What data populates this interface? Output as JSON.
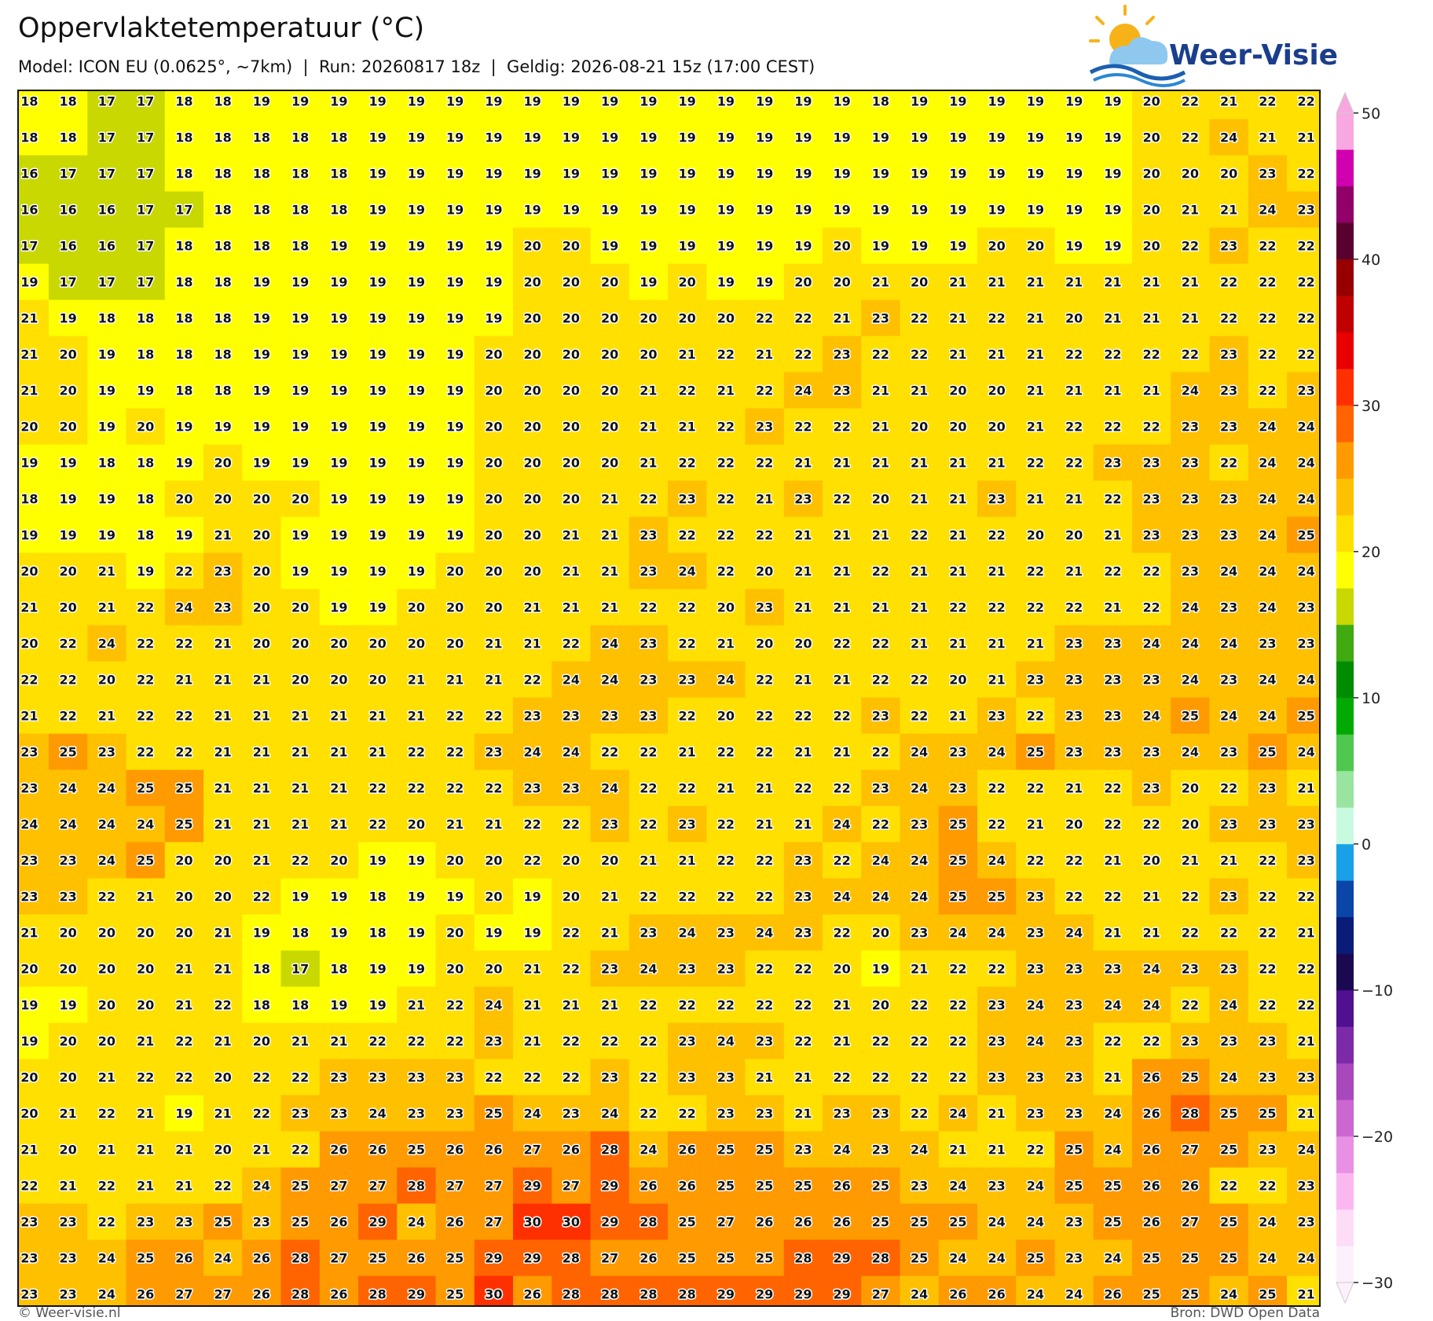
{
  "header": {
    "title": "Oppervlaktetemperatuur (°C)",
    "subtitle": "Model: ICON EU (0.0625°, ~7km)  |  Run: 20260817 18z  |  Geldig: 2026-08-21 15z (17:00 CEST)",
    "logo": "Weer-Visie"
  },
  "map": {
    "values": [
      [
        18,
        18,
        17,
        17,
        18,
        18,
        19,
        19,
        19,
        19,
        19,
        19,
        19,
        19,
        19,
        19,
        19,
        19,
        19,
        19,
        19,
        19,
        18,
        19,
        19,
        19,
        19,
        19,
        19,
        20,
        22,
        21,
        22,
        22
      ],
      [
        18,
        18,
        17,
        17,
        18,
        18,
        18,
        18,
        18,
        19,
        19,
        19,
        19,
        19,
        19,
        19,
        19,
        19,
        19,
        19,
        19,
        19,
        19,
        19,
        19,
        19,
        19,
        19,
        19,
        20,
        22,
        24,
        21,
        21
      ],
      [
        16,
        17,
        17,
        17,
        18,
        18,
        18,
        18,
        18,
        19,
        19,
        19,
        19,
        19,
        19,
        19,
        19,
        19,
        19,
        19,
        19,
        19,
        19,
        19,
        19,
        19,
        19,
        19,
        19,
        20,
        20,
        20,
        23,
        22
      ],
      [
        16,
        16,
        16,
        17,
        17,
        18,
        18,
        18,
        18,
        19,
        19,
        19,
        19,
        19,
        19,
        19,
        19,
        19,
        19,
        19,
        19,
        19,
        19,
        19,
        19,
        19,
        19,
        19,
        19,
        20,
        21,
        21,
        24,
        23
      ],
      [
        17,
        16,
        16,
        17,
        18,
        18,
        18,
        18,
        19,
        19,
        19,
        19,
        19,
        20,
        20,
        19,
        19,
        19,
        19,
        19,
        19,
        20,
        19,
        19,
        19,
        20,
        20,
        19,
        19,
        20,
        22,
        23,
        22,
        22
      ],
      [
        19,
        17,
        17,
        17,
        18,
        18,
        19,
        19,
        19,
        19,
        19,
        19,
        19,
        20,
        20,
        20,
        19,
        20,
        19,
        19,
        20,
        20,
        21,
        20,
        21,
        21,
        21,
        21,
        21,
        21,
        21,
        22,
        22,
        22
      ],
      [
        21,
        19,
        18,
        18,
        18,
        18,
        19,
        19,
        19,
        19,
        19,
        19,
        19,
        20,
        20,
        20,
        20,
        20,
        20,
        22,
        22,
        21,
        23,
        22,
        21,
        22,
        21,
        20,
        21,
        21,
        21,
        22,
        22,
        22
      ],
      [
        21,
        20,
        19,
        18,
        18,
        18,
        19,
        19,
        19,
        19,
        19,
        19,
        20,
        20,
        20,
        20,
        20,
        21,
        22,
        21,
        22,
        23,
        22,
        22,
        21,
        21,
        21,
        22,
        22,
        22,
        22,
        23,
        22,
        22
      ],
      [
        21,
        20,
        19,
        19,
        18,
        18,
        19,
        19,
        19,
        19,
        19,
        19,
        20,
        20,
        20,
        20,
        21,
        22,
        21,
        22,
        24,
        23,
        21,
        21,
        20,
        20,
        21,
        21,
        21,
        21,
        24,
        23,
        22,
        23
      ],
      [
        20,
        20,
        19,
        20,
        19,
        19,
        19,
        19,
        19,
        19,
        19,
        19,
        20,
        20,
        20,
        20,
        21,
        21,
        22,
        23,
        22,
        22,
        21,
        20,
        20,
        20,
        21,
        22,
        22,
        22,
        23,
        23,
        24,
        24
      ],
      [
        19,
        19,
        18,
        18,
        19,
        20,
        19,
        19,
        19,
        19,
        19,
        19,
        20,
        20,
        20,
        20,
        21,
        22,
        22,
        22,
        21,
        21,
        21,
        21,
        21,
        21,
        22,
        22,
        23,
        23,
        23,
        22,
        24,
        24
      ],
      [
        18,
        19,
        19,
        18,
        20,
        20,
        20,
        20,
        19,
        19,
        19,
        19,
        20,
        20,
        20,
        21,
        22,
        23,
        22,
        21,
        23,
        22,
        20,
        21,
        21,
        23,
        21,
        21,
        22,
        23,
        23,
        23,
        24,
        24
      ],
      [
        19,
        19,
        19,
        18,
        19,
        21,
        20,
        19,
        19,
        19,
        19,
        19,
        20,
        20,
        21,
        21,
        23,
        22,
        22,
        22,
        21,
        21,
        21,
        22,
        21,
        22,
        20,
        20,
        21,
        23,
        23,
        23,
        24,
        25
      ],
      [
        20,
        20,
        21,
        19,
        22,
        23,
        20,
        19,
        19,
        19,
        19,
        20,
        20,
        20,
        21,
        21,
        23,
        24,
        22,
        20,
        21,
        21,
        22,
        21,
        21,
        21,
        22,
        21,
        22,
        22,
        23,
        24,
        24,
        24
      ],
      [
        21,
        20,
        21,
        22,
        24,
        23,
        20,
        20,
        19,
        19,
        20,
        20,
        20,
        21,
        21,
        21,
        22,
        22,
        20,
        23,
        21,
        21,
        21,
        21,
        22,
        22,
        22,
        22,
        21,
        22,
        24,
        23,
        24,
        23
      ],
      [
        20,
        22,
        24,
        22,
        22,
        21,
        20,
        20,
        20,
        20,
        20,
        20,
        21,
        21,
        22,
        24,
        23,
        22,
        21,
        20,
        20,
        22,
        22,
        21,
        21,
        21,
        21,
        23,
        23,
        24,
        24,
        24,
        23,
        23
      ],
      [
        22,
        22,
        20,
        22,
        21,
        21,
        21,
        20,
        20,
        20,
        21,
        21,
        21,
        22,
        24,
        24,
        23,
        23,
        24,
        22,
        21,
        21,
        22,
        22,
        20,
        21,
        23,
        23,
        23,
        23,
        24,
        23,
        24,
        24
      ],
      [
        21,
        22,
        21,
        22,
        22,
        21,
        21,
        21,
        21,
        21,
        21,
        22,
        22,
        23,
        23,
        23,
        23,
        22,
        20,
        22,
        22,
        22,
        23,
        22,
        21,
        23,
        22,
        23,
        23,
        24,
        25,
        24,
        24,
        25
      ],
      [
        23,
        25,
        23,
        22,
        22,
        21,
        21,
        21,
        21,
        21,
        22,
        22,
        23,
        24,
        24,
        22,
        22,
        21,
        22,
        22,
        21,
        21,
        22,
        24,
        23,
        24,
        25,
        23,
        23,
        23,
        24,
        23,
        25,
        24
      ],
      [
        23,
        24,
        24,
        25,
        25,
        21,
        21,
        21,
        21,
        22,
        22,
        22,
        22,
        23,
        23,
        24,
        22,
        22,
        21,
        21,
        22,
        22,
        23,
        24,
        23,
        22,
        22,
        21,
        22,
        23,
        20,
        22,
        23,
        21
      ],
      [
        24,
        24,
        24,
        24,
        25,
        21,
        21,
        21,
        21,
        22,
        20,
        21,
        21,
        22,
        22,
        23,
        22,
        23,
        22,
        21,
        21,
        24,
        22,
        23,
        25,
        22,
        21,
        20,
        22,
        22,
        20,
        23,
        23,
        23
      ],
      [
        23,
        23,
        24,
        25,
        20,
        20,
        21,
        22,
        20,
        19,
        19,
        20,
        20,
        22,
        20,
        20,
        21,
        21,
        22,
        22,
        23,
        22,
        24,
        24,
        25,
        24,
        22,
        22,
        21,
        20,
        21,
        21,
        22,
        23
      ],
      [
        23,
        23,
        22,
        21,
        20,
        20,
        22,
        19,
        19,
        18,
        19,
        19,
        20,
        19,
        20,
        21,
        22,
        22,
        22,
        22,
        23,
        24,
        24,
        24,
        25,
        25,
        23,
        22,
        22,
        21,
        22,
        23,
        22,
        22
      ],
      [
        21,
        20,
        20,
        20,
        20,
        21,
        19,
        18,
        19,
        18,
        19,
        20,
        19,
        19,
        22,
        21,
        23,
        24,
        23,
        24,
        23,
        22,
        20,
        23,
        24,
        24,
        23,
        24,
        21,
        21,
        22,
        22,
        22,
        21
      ],
      [
        20,
        20,
        20,
        20,
        21,
        21,
        18,
        17,
        18,
        19,
        19,
        20,
        20,
        21,
        22,
        23,
        24,
        23,
        23,
        22,
        22,
        20,
        19,
        21,
        22,
        22,
        23,
        23,
        23,
        24,
        23,
        23,
        22,
        22
      ],
      [
        19,
        19,
        20,
        20,
        21,
        22,
        18,
        18,
        19,
        19,
        21,
        22,
        24,
        21,
        21,
        21,
        22,
        22,
        22,
        22,
        22,
        21,
        20,
        22,
        22,
        23,
        24,
        23,
        24,
        24,
        22,
        24,
        22,
        22
      ],
      [
        19,
        20,
        20,
        21,
        22,
        21,
        20,
        21,
        21,
        22,
        22,
        22,
        23,
        21,
        22,
        22,
        22,
        23,
        24,
        23,
        22,
        21,
        22,
        22,
        22,
        23,
        24,
        23,
        22,
        22,
        23,
        23,
        23,
        21
      ],
      [
        20,
        20,
        21,
        22,
        22,
        20,
        22,
        22,
        23,
        23,
        23,
        23,
        22,
        22,
        22,
        23,
        22,
        23,
        23,
        21,
        21,
        22,
        22,
        22,
        22,
        23,
        23,
        23,
        21,
        26,
        25,
        24,
        23,
        23
      ],
      [
        20,
        21,
        22,
        21,
        19,
        21,
        22,
        23,
        23,
        24,
        23,
        23,
        25,
        24,
        23,
        24,
        22,
        22,
        23,
        23,
        21,
        23,
        23,
        22,
        24,
        21,
        23,
        23,
        24,
        26,
        28,
        25,
        25,
        21
      ],
      [
        21,
        20,
        21,
        21,
        21,
        20,
        21,
        22,
        26,
        26,
        25,
        26,
        26,
        27,
        26,
        28,
        24,
        26,
        25,
        25,
        23,
        24,
        23,
        24,
        21,
        21,
        22,
        25,
        24,
        26,
        27,
        25,
        23,
        24
      ],
      [
        22,
        21,
        22,
        21,
        21,
        22,
        24,
        25,
        27,
        27,
        28,
        27,
        27,
        29,
        27,
        29,
        26,
        26,
        25,
        25,
        25,
        26,
        25,
        23,
        24,
        23,
        24,
        25,
        25,
        26,
        26,
        22,
        22,
        23
      ],
      [
        23,
        23,
        22,
        23,
        23,
        25,
        23,
        25,
        26,
        29,
        24,
        26,
        27,
        30,
        30,
        29,
        28,
        25,
        27,
        26,
        26,
        26,
        25,
        25,
        25,
        24,
        24,
        23,
        25,
        26,
        27,
        25,
        24,
        23
      ],
      [
        23,
        23,
        24,
        25,
        26,
        24,
        26,
        28,
        27,
        25,
        26,
        25,
        29,
        29,
        28,
        27,
        26,
        25,
        25,
        25,
        28,
        29,
        28,
        25,
        24,
        24,
        25,
        23,
        24,
        25,
        25,
        25,
        24,
        24
      ],
      [
        23,
        23,
        24,
        26,
        27,
        27,
        26,
        28,
        26,
        28,
        29,
        25,
        30,
        26,
        28,
        28,
        28,
        28,
        29,
        29,
        29,
        29,
        27,
        24,
        26,
        26,
        24,
        24,
        26,
        25,
        25,
        24,
        25,
        21
      ]
    ]
  },
  "colorbar": {
    "lim": [
      -30,
      50
    ],
    "ticks": [
      50,
      40,
      30,
      20,
      10,
      0,
      {
        "value": -10,
        "label": "−10"
      },
      {
        "value": -20,
        "label": "−20"
      },
      {
        "value": -30,
        "label": "−30"
      }
    ],
    "colors": [
      "#fdf0fd",
      "#fddcf8",
      "#fbb8f0",
      "#e890e4",
      "#cc66d0",
      "#a848bc",
      "#7c2aa8",
      "#501090",
      "#1a0850",
      "#081c78",
      "#0a46a8",
      "#1aa0e6",
      "#c8fae0",
      "#98e4a0",
      "#50c850",
      "#00aa00",
      "#008c00",
      "#40aa10",
      "#c8d800",
      "#ffff00",
      "#ffe000",
      "#ffc000",
      "#ff9a00",
      "#ff6400",
      "#ff3000",
      "#e80000",
      "#c00000",
      "#980000",
      "#5a0030",
      "#900068",
      "#d000b0",
      "#f8a8e0"
    ]
  },
  "footer": {
    "left": "© Weer-visie.nl",
    "right": "Bron: DWD Open Data"
  }
}
